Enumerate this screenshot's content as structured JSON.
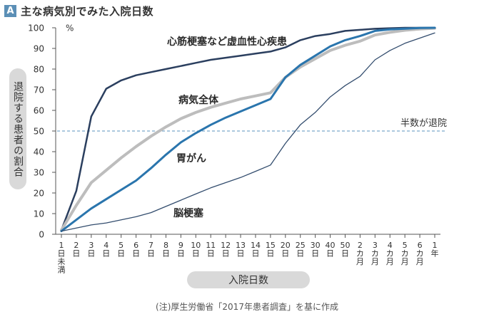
{
  "header": {
    "badge": "A",
    "title": "主な病気別でみた入院日数"
  },
  "axis": {
    "ylabel": "退院する患者の割合",
    "xlabel": "入院日数",
    "yunit": "%"
  },
  "note": "(注)厚生労働省「2017年患者調査」を基に作成",
  "colors": {
    "dark_navy": "#2b3f5f",
    "gray": "#bdbdbd",
    "blue": "#2a75ad",
    "thin_navy": "#334d6e",
    "half_line": "#7aa9cc",
    "badge": "#5b8fb6"
  },
  "chart_data": {
    "type": "line",
    "title": "主な病気別でみた入院日数",
    "xlabel": "入院日数",
    "ylabel": "退院する患者の割合",
    "ylim": [
      0,
      100
    ],
    "yticks": [
      0,
      10,
      20,
      30,
      40,
      50,
      60,
      70,
      80,
      90,
      100
    ],
    "grid": false,
    "legend": "inline labels",
    "categories": [
      [
        "1",
        "日",
        "未",
        "満"
      ],
      [
        "2",
        "日"
      ],
      [
        "3",
        "日"
      ],
      [
        "4",
        "日"
      ],
      [
        "5",
        "日"
      ],
      [
        "6",
        "日"
      ],
      [
        "7",
        "日"
      ],
      [
        "8",
        "日"
      ],
      [
        "9",
        "日"
      ],
      [
        "10",
        "日"
      ],
      [
        "11",
        "日"
      ],
      [
        "12",
        "日"
      ],
      [
        "13",
        "日"
      ],
      [
        "14",
        "日"
      ],
      [
        "15",
        "日"
      ],
      [
        "20",
        "日"
      ],
      [
        "25",
        "日"
      ],
      [
        "30",
        "日"
      ],
      [
        "40",
        "日"
      ],
      [
        "50",
        "日"
      ],
      [
        "2",
        "カ",
        "月"
      ],
      [
        "3",
        "カ",
        "月"
      ],
      [
        "4",
        "カ",
        "月"
      ],
      [
        "5",
        "カ",
        "月"
      ],
      [
        "6",
        "カ",
        "月"
      ],
      [
        "1",
        "年"
      ]
    ],
    "reference_line": {
      "y": 50,
      "label": "半数が退院"
    },
    "series": [
      {
        "name": "心筋梗塞など虚血性心疾患",
        "color": "#2b3f5f",
        "width": 2.5,
        "values": [
          2,
          21,
          57,
          70.5,
          74.5,
          77,
          78.5,
          80,
          81.5,
          83,
          84.5,
          85.5,
          86.5,
          87.5,
          88.5,
          90.5,
          94,
          96,
          97,
          98.5,
          99,
          99.5,
          99.8,
          100,
          100,
          100
        ]
      },
      {
        "name": "病気全体",
        "color": "#bdbdbd",
        "width": 4,
        "values": [
          2,
          14,
          25,
          31,
          37,
          42.5,
          47.5,
          52,
          56,
          59,
          61.5,
          63.5,
          65.5,
          67,
          68.5,
          76,
          81,
          85,
          89,
          91.5,
          93.5,
          96.5,
          97.8,
          98.8,
          99.4,
          99.8
        ]
      },
      {
        "name": "胃がん",
        "color": "#2a75ad",
        "width": 3,
        "values": [
          1.5,
          7,
          12.5,
          17,
          21.5,
          26,
          32,
          38.5,
          44.5,
          49,
          53,
          56.5,
          59.5,
          62.5,
          65.5,
          76,
          82,
          86.5,
          91,
          94,
          96,
          98.5,
          99.2,
          99.6,
          99.9,
          100
        ]
      },
      {
        "name": "脳梗塞",
        "color": "#334d6e",
        "width": 1.3,
        "values": [
          1.5,
          3,
          4.5,
          5.5,
          7,
          8.5,
          10.5,
          13.5,
          16.5,
          19.5,
          22.5,
          25,
          27.5,
          30.5,
          33.5,
          44,
          53,
          59,
          66.5,
          72,
          76.5,
          84.5,
          89,
          92.5,
          95,
          97.5
        ]
      }
    ]
  }
}
